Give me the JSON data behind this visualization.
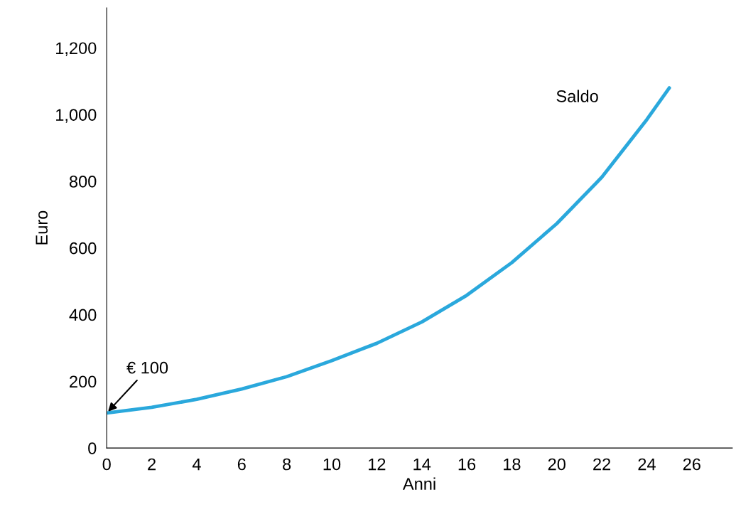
{
  "chart_data": {
    "type": "line",
    "xlabel": "Anni",
    "ylabel": "Euro",
    "x": [
      0,
      2,
      4,
      6,
      8,
      10,
      12,
      14,
      16,
      18,
      20,
      22,
      24,
      25
    ],
    "series": [
      {
        "name": "Saldo",
        "color": "#2aa8dc",
        "values": [
          105,
          122,
          146,
          177,
          214,
          262,
          314,
          378,
          458,
          556,
          673,
          812,
          985,
          1080
        ]
      }
    ],
    "annotations": [
      {
        "text": "€ 100",
        "x": 0,
        "y": 105
      }
    ],
    "xlim": [
      0,
      27.8
    ],
    "ylim": [
      0,
      1320
    ],
    "xticks": [
      0,
      2,
      4,
      6,
      8,
      10,
      12,
      14,
      16,
      18,
      20,
      22,
      24,
      26
    ],
    "yticks": [
      0,
      {
        "value": 200,
        "label": "200"
      },
      {
        "value": 400,
        "label": "400"
      },
      {
        "value": 600,
        "label": "600"
      },
      {
        "value": 800,
        "label": "800"
      },
      {
        "value": 1000,
        "label": "1,000"
      },
      {
        "value": 1200,
        "label": "1,200"
      }
    ],
    "grid": false,
    "legend": false,
    "marker": "none",
    "line_style": "solid"
  }
}
